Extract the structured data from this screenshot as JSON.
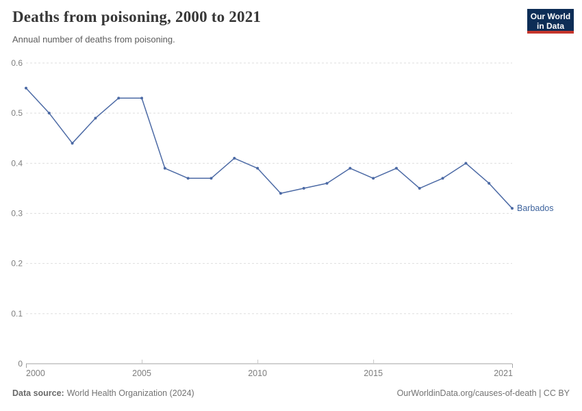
{
  "header": {
    "title": "Deaths from poisoning, 2000 to 2021",
    "subtitle": "Annual number of deaths from poisoning.",
    "logo": {
      "line1": "Our World",
      "line2": "in Data",
      "background": "#0d2d56",
      "accent": "#c5352c"
    }
  },
  "chart_data": {
    "type": "line",
    "title": "Deaths from poisoning, 2000 to 2021",
    "xlabel": "",
    "ylabel": "",
    "x": [
      2000,
      2001,
      2002,
      2003,
      2004,
      2005,
      2006,
      2007,
      2008,
      2009,
      2010,
      2011,
      2012,
      2013,
      2014,
      2015,
      2016,
      2017,
      2018,
      2019,
      2020,
      2021
    ],
    "series": [
      {
        "name": "Barbados",
        "color": "#4C6AA5",
        "label_color": "#3d639d",
        "values": [
          0.55,
          0.5,
          0.44,
          0.49,
          0.53,
          0.53,
          0.39,
          0.37,
          0.37,
          0.41,
          0.39,
          0.34,
          0.35,
          0.36,
          0.39,
          0.37,
          0.39,
          0.35,
          0.37,
          0.4,
          0.36,
          0.31
        ]
      }
    ],
    "ylim": [
      0,
      0.6
    ],
    "yticks": [
      0,
      0.1,
      0.2,
      0.3,
      0.4,
      0.5,
      0.6
    ],
    "ytick_labels": [
      "0",
      "0.1",
      "0.2",
      "0.3",
      "0.4",
      "0.5",
      "0.6"
    ],
    "xticks": [
      2000,
      2005,
      2010,
      2015,
      2021
    ],
    "grid": "horizontal-dashed",
    "legend_position": "end-of-line-label"
  },
  "footer": {
    "source_label": "Data source:",
    "source_value": "World Health Organization (2024)",
    "attribution": "OurWorldinData.org/causes-of-death | CC BY"
  },
  "colors": {
    "grid": "#dedede",
    "axis": "#a3a3a3",
    "minor_tick": "#c6c6c6",
    "tick_label": "#7d7d7d"
  }
}
